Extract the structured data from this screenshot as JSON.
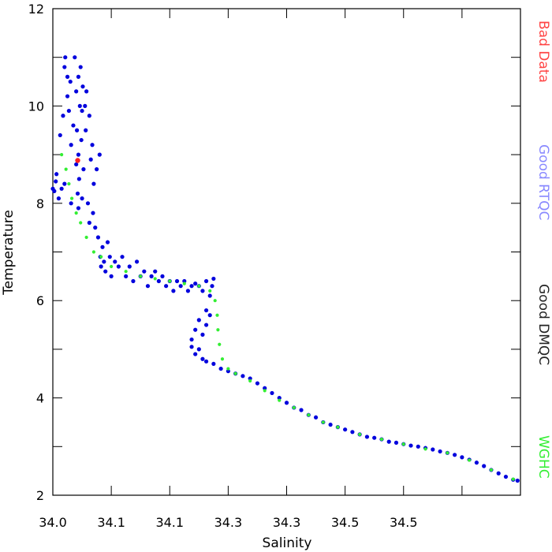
{
  "chart_data": {
    "type": "scatter",
    "title": "",
    "xlabel": "Salinity",
    "ylabel": "Temperature",
    "xlim": [
      34.0,
      34.64
    ],
    "ylim": [
      2,
      12
    ],
    "x_ticks": [
      34.0,
      34.08,
      34.16,
      34.24,
      34.32,
      34.4,
      34.48,
      34.56,
      34.64
    ],
    "x_tick_labels": [
      "34.0",
      "34.1",
      "34.1",
      "34.3",
      "34.3",
      "34.5",
      "34.5"
    ],
    "x_label_ticks": [
      34.0,
      34.08,
      34.16,
      34.24,
      34.32,
      34.4,
      34.48
    ],
    "y_ticks": [
      2,
      3,
      4,
      5,
      6,
      7,
      8,
      9,
      10,
      11,
      12
    ],
    "y_tick_labels": [
      "2",
      "4",
      "6",
      "8",
      "10",
      "12"
    ],
    "y_label_ticks": [
      2,
      4,
      6,
      8,
      10,
      12
    ],
    "grid": false,
    "legend_placement": "right-vertical",
    "legend": [
      {
        "name": "Bad Data",
        "color": "#ff4444"
      },
      {
        "name": "Good RTQC",
        "color": "#8888ff"
      },
      {
        "name": "Good DMQC",
        "color": "#222222"
      },
      {
        "name": "WGHC",
        "color": "#33ee33"
      }
    ],
    "series": [
      {
        "name": "Good RTQC",
        "color": "#0000dd",
        "points": [
          [
            34.0,
            8.3
          ],
          [
            34.002,
            8.25
          ],
          [
            34.004,
            8.45
          ],
          [
            34.005,
            8.6
          ],
          [
            34.008,
            8.1
          ],
          [
            34.012,
            8.3
          ],
          [
            34.01,
            9.4
          ],
          [
            34.014,
            9.8
          ],
          [
            34.016,
            8.4
          ],
          [
            34.016,
            10.8
          ],
          [
            34.017,
            11.0
          ],
          [
            34.02,
            10.6
          ],
          [
            34.02,
            10.2
          ],
          [
            34.022,
            9.9
          ],
          [
            34.024,
            10.5
          ],
          [
            34.025,
            9.2
          ],
          [
            34.025,
            8.0
          ],
          [
            34.028,
            9.6
          ],
          [
            34.03,
            11.0
          ],
          [
            34.032,
            10.3
          ],
          [
            34.032,
            8.8
          ],
          [
            34.033,
            9.5
          ],
          [
            34.034,
            8.2
          ],
          [
            34.035,
            10.6
          ],
          [
            34.035,
            9.0
          ],
          [
            34.035,
            7.9
          ],
          [
            34.036,
            8.5
          ],
          [
            34.037,
            10.0
          ],
          [
            34.038,
            10.8
          ],
          [
            34.039,
            9.3
          ],
          [
            34.04,
            9.9
          ],
          [
            34.04,
            8.1
          ],
          [
            34.041,
            10.4
          ],
          [
            34.042,
            8.7
          ],
          [
            34.044,
            10.0
          ],
          [
            34.045,
            9.5
          ],
          [
            34.046,
            10.3
          ],
          [
            34.048,
            8.0
          ],
          [
            34.05,
            9.8
          ],
          [
            34.05,
            7.6
          ],
          [
            34.052,
            8.9
          ],
          [
            34.054,
            9.2
          ],
          [
            34.055,
            7.8
          ],
          [
            34.056,
            8.4
          ],
          [
            34.058,
            7.5
          ],
          [
            34.06,
            8.7
          ],
          [
            34.062,
            7.3
          ],
          [
            34.064,
            9.0
          ],
          [
            34.065,
            6.9
          ],
          [
            34.066,
            6.7
          ],
          [
            34.068,
            7.1
          ],
          [
            34.07,
            6.8
          ],
          [
            34.072,
            6.6
          ],
          [
            34.075,
            7.2
          ],
          [
            34.078,
            6.9
          ],
          [
            34.08,
            6.5
          ],
          [
            34.085,
            6.8
          ],
          [
            34.09,
            6.7
          ],
          [
            34.095,
            6.9
          ],
          [
            34.1,
            6.5
          ],
          [
            34.105,
            6.7
          ],
          [
            34.11,
            6.4
          ],
          [
            34.115,
            6.8
          ],
          [
            34.12,
            6.5
          ],
          [
            34.125,
            6.6
          ],
          [
            34.13,
            6.3
          ],
          [
            34.135,
            6.5
          ],
          [
            34.14,
            6.6
          ],
          [
            34.145,
            6.4
          ],
          [
            34.15,
            6.5
          ],
          [
            34.155,
            6.3
          ],
          [
            34.16,
            6.4
          ],
          [
            34.165,
            6.2
          ],
          [
            34.17,
            6.4
          ],
          [
            34.175,
            6.3
          ],
          [
            34.18,
            6.4
          ],
          [
            34.185,
            6.2
          ],
          [
            34.19,
            6.3
          ],
          [
            34.195,
            6.35
          ],
          [
            34.2,
            6.3
          ],
          [
            34.205,
            6.2
          ],
          [
            34.21,
            6.4
          ],
          [
            34.215,
            6.1
          ],
          [
            34.218,
            6.3
          ],
          [
            34.22,
            6.45
          ],
          [
            34.21,
            5.8
          ],
          [
            34.2,
            5.6
          ],
          [
            34.195,
            5.4
          ],
          [
            34.19,
            5.2
          ],
          [
            34.19,
            5.05
          ],
          [
            34.195,
            4.9
          ],
          [
            34.2,
            5.0
          ],
          [
            34.205,
            5.3
          ],
          [
            34.21,
            5.5
          ],
          [
            34.215,
            5.7
          ],
          [
            34.205,
            4.8
          ],
          [
            34.21,
            4.75
          ],
          [
            34.22,
            4.7
          ],
          [
            34.23,
            4.6
          ],
          [
            34.24,
            4.55
          ],
          [
            34.25,
            4.5
          ],
          [
            34.26,
            4.45
          ],
          [
            34.27,
            4.4
          ],
          [
            34.28,
            4.3
          ],
          [
            34.29,
            4.2
          ],
          [
            34.3,
            4.1
          ],
          [
            34.31,
            4.0
          ],
          [
            34.32,
            3.9
          ],
          [
            34.33,
            3.8
          ],
          [
            34.34,
            3.75
          ],
          [
            34.35,
            3.65
          ],
          [
            34.36,
            3.6
          ],
          [
            34.37,
            3.5
          ],
          [
            34.38,
            3.45
          ],
          [
            34.39,
            3.4
          ],
          [
            34.4,
            3.35
          ],
          [
            34.41,
            3.3
          ],
          [
            34.42,
            3.25
          ],
          [
            34.43,
            3.2
          ],
          [
            34.44,
            3.18
          ],
          [
            34.45,
            3.15
          ],
          [
            34.46,
            3.1
          ],
          [
            34.47,
            3.08
          ],
          [
            34.48,
            3.05
          ],
          [
            34.49,
            3.02
          ],
          [
            34.5,
            3.0
          ],
          [
            34.51,
            2.97
          ],
          [
            34.52,
            2.94
          ],
          [
            34.53,
            2.9
          ],
          [
            34.54,
            2.87
          ],
          [
            34.55,
            2.83
          ],
          [
            34.56,
            2.78
          ],
          [
            34.57,
            2.73
          ],
          [
            34.58,
            2.67
          ],
          [
            34.59,
            2.6
          ],
          [
            34.6,
            2.52
          ],
          [
            34.61,
            2.45
          ],
          [
            34.62,
            2.38
          ],
          [
            34.63,
            2.32
          ],
          [
            34.636,
            2.3
          ]
        ]
      },
      {
        "name": "WGHC",
        "color": "#33ee33",
        "points": [
          [
            34.012,
            9.0
          ],
          [
            34.018,
            8.7
          ],
          [
            34.022,
            8.4
          ],
          [
            34.026,
            8.1
          ],
          [
            34.032,
            7.8
          ],
          [
            34.038,
            7.6
          ],
          [
            34.046,
            7.3
          ],
          [
            34.056,
            7.0
          ],
          [
            34.066,
            6.9
          ],
          [
            34.08,
            6.7
          ],
          [
            34.1,
            6.6
          ],
          [
            34.12,
            6.5
          ],
          [
            34.14,
            6.45
          ],
          [
            34.16,
            6.4
          ],
          [
            34.18,
            6.35
          ],
          [
            34.2,
            6.3
          ],
          [
            34.215,
            6.2
          ],
          [
            34.222,
            6.0
          ],
          [
            34.225,
            5.7
          ],
          [
            34.226,
            5.4
          ],
          [
            34.228,
            5.1
          ],
          [
            34.232,
            4.8
          ],
          [
            34.24,
            4.6
          ],
          [
            34.25,
            4.5
          ],
          [
            34.27,
            4.35
          ],
          [
            34.29,
            4.15
          ],
          [
            34.31,
            3.95
          ],
          [
            34.33,
            3.8
          ],
          [
            34.35,
            3.65
          ],
          [
            34.37,
            3.5
          ],
          [
            34.39,
            3.4
          ],
          [
            34.42,
            3.25
          ],
          [
            34.45,
            3.15
          ],
          [
            34.48,
            3.05
          ],
          [
            34.51,
            2.95
          ],
          [
            34.54,
            2.87
          ],
          [
            34.57,
            2.72
          ],
          [
            34.6,
            2.52
          ],
          [
            34.63,
            2.33
          ]
        ]
      },
      {
        "name": "Bad Data",
        "color": "#ff2222",
        "points": [
          [
            34.034,
            8.88
          ]
        ]
      }
    ]
  }
}
